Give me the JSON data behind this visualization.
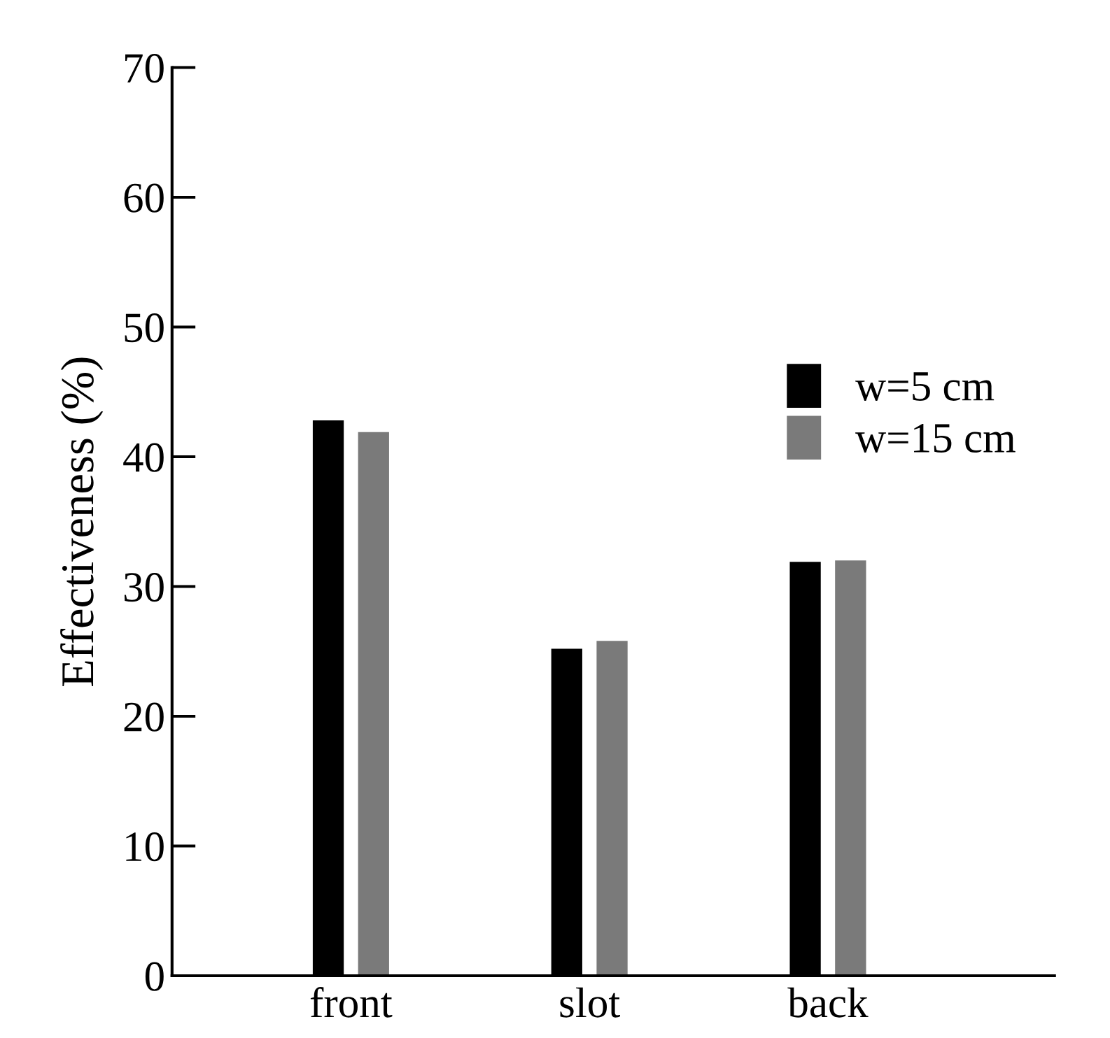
{
  "chart_data": {
    "type": "bar",
    "ylabel": "Effectiveness (%)",
    "categories": [
      "front",
      "slot",
      "back"
    ],
    "series": [
      {
        "name": "w=5 cm",
        "color": "#000000",
        "values": [
          42.8,
          25.2,
          31.9
        ]
      },
      {
        "name": "w=15 cm",
        "color": "#7a7a7a",
        "values": [
          41.9,
          25.8,
          32.0
        ]
      }
    ],
    "ylim": [
      0,
      70
    ],
    "yticks": [
      0,
      10,
      20,
      30,
      40,
      50,
      60,
      70
    ],
    "grid": false,
    "legend": "right"
  }
}
